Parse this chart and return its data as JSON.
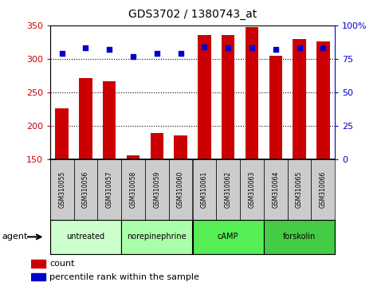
{
  "title": "GDS3702 / 1380743_at",
  "samples": [
    "GSM310055",
    "GSM310056",
    "GSM310057",
    "GSM310058",
    "GSM310059",
    "GSM310060",
    "GSM310061",
    "GSM310062",
    "GSM310063",
    "GSM310064",
    "GSM310065",
    "GSM310066"
  ],
  "counts": [
    226,
    271,
    266,
    156,
    189,
    186,
    336,
    336,
    348,
    305,
    330,
    326
  ],
  "percentiles": [
    79,
    83,
    82,
    77,
    79,
    79,
    84,
    83,
    83,
    82,
    83,
    83
  ],
  "bar_bottom": 150,
  "ylim_left": [
    150,
    350
  ],
  "ylim_right": [
    0,
    100
  ],
  "yticks_left": [
    150,
    200,
    250,
    300,
    350
  ],
  "yticks_right": [
    0,
    25,
    50,
    75,
    100
  ],
  "bar_color": "#cc0000",
  "dot_color": "#0000cc",
  "agent_groups": [
    {
      "label": "untreated",
      "start": 0,
      "end": 3,
      "color": "#ccffcc"
    },
    {
      "label": "norepinephrine",
      "start": 3,
      "end": 6,
      "color": "#aaffaa"
    },
    {
      "label": "cAMP",
      "start": 6,
      "end": 9,
      "color": "#55ee55"
    },
    {
      "label": "forskolin",
      "start": 9,
      "end": 12,
      "color": "#44cc44"
    }
  ],
  "legend_count_label": "count",
  "legend_pct_label": "percentile rank within the sample",
  "xlabel_agent": "agent",
  "left_axis_color": "#cc0000",
  "right_axis_color": "#0000cc",
  "fig_width": 4.83,
  "fig_height": 3.54,
  "dpi": 100
}
